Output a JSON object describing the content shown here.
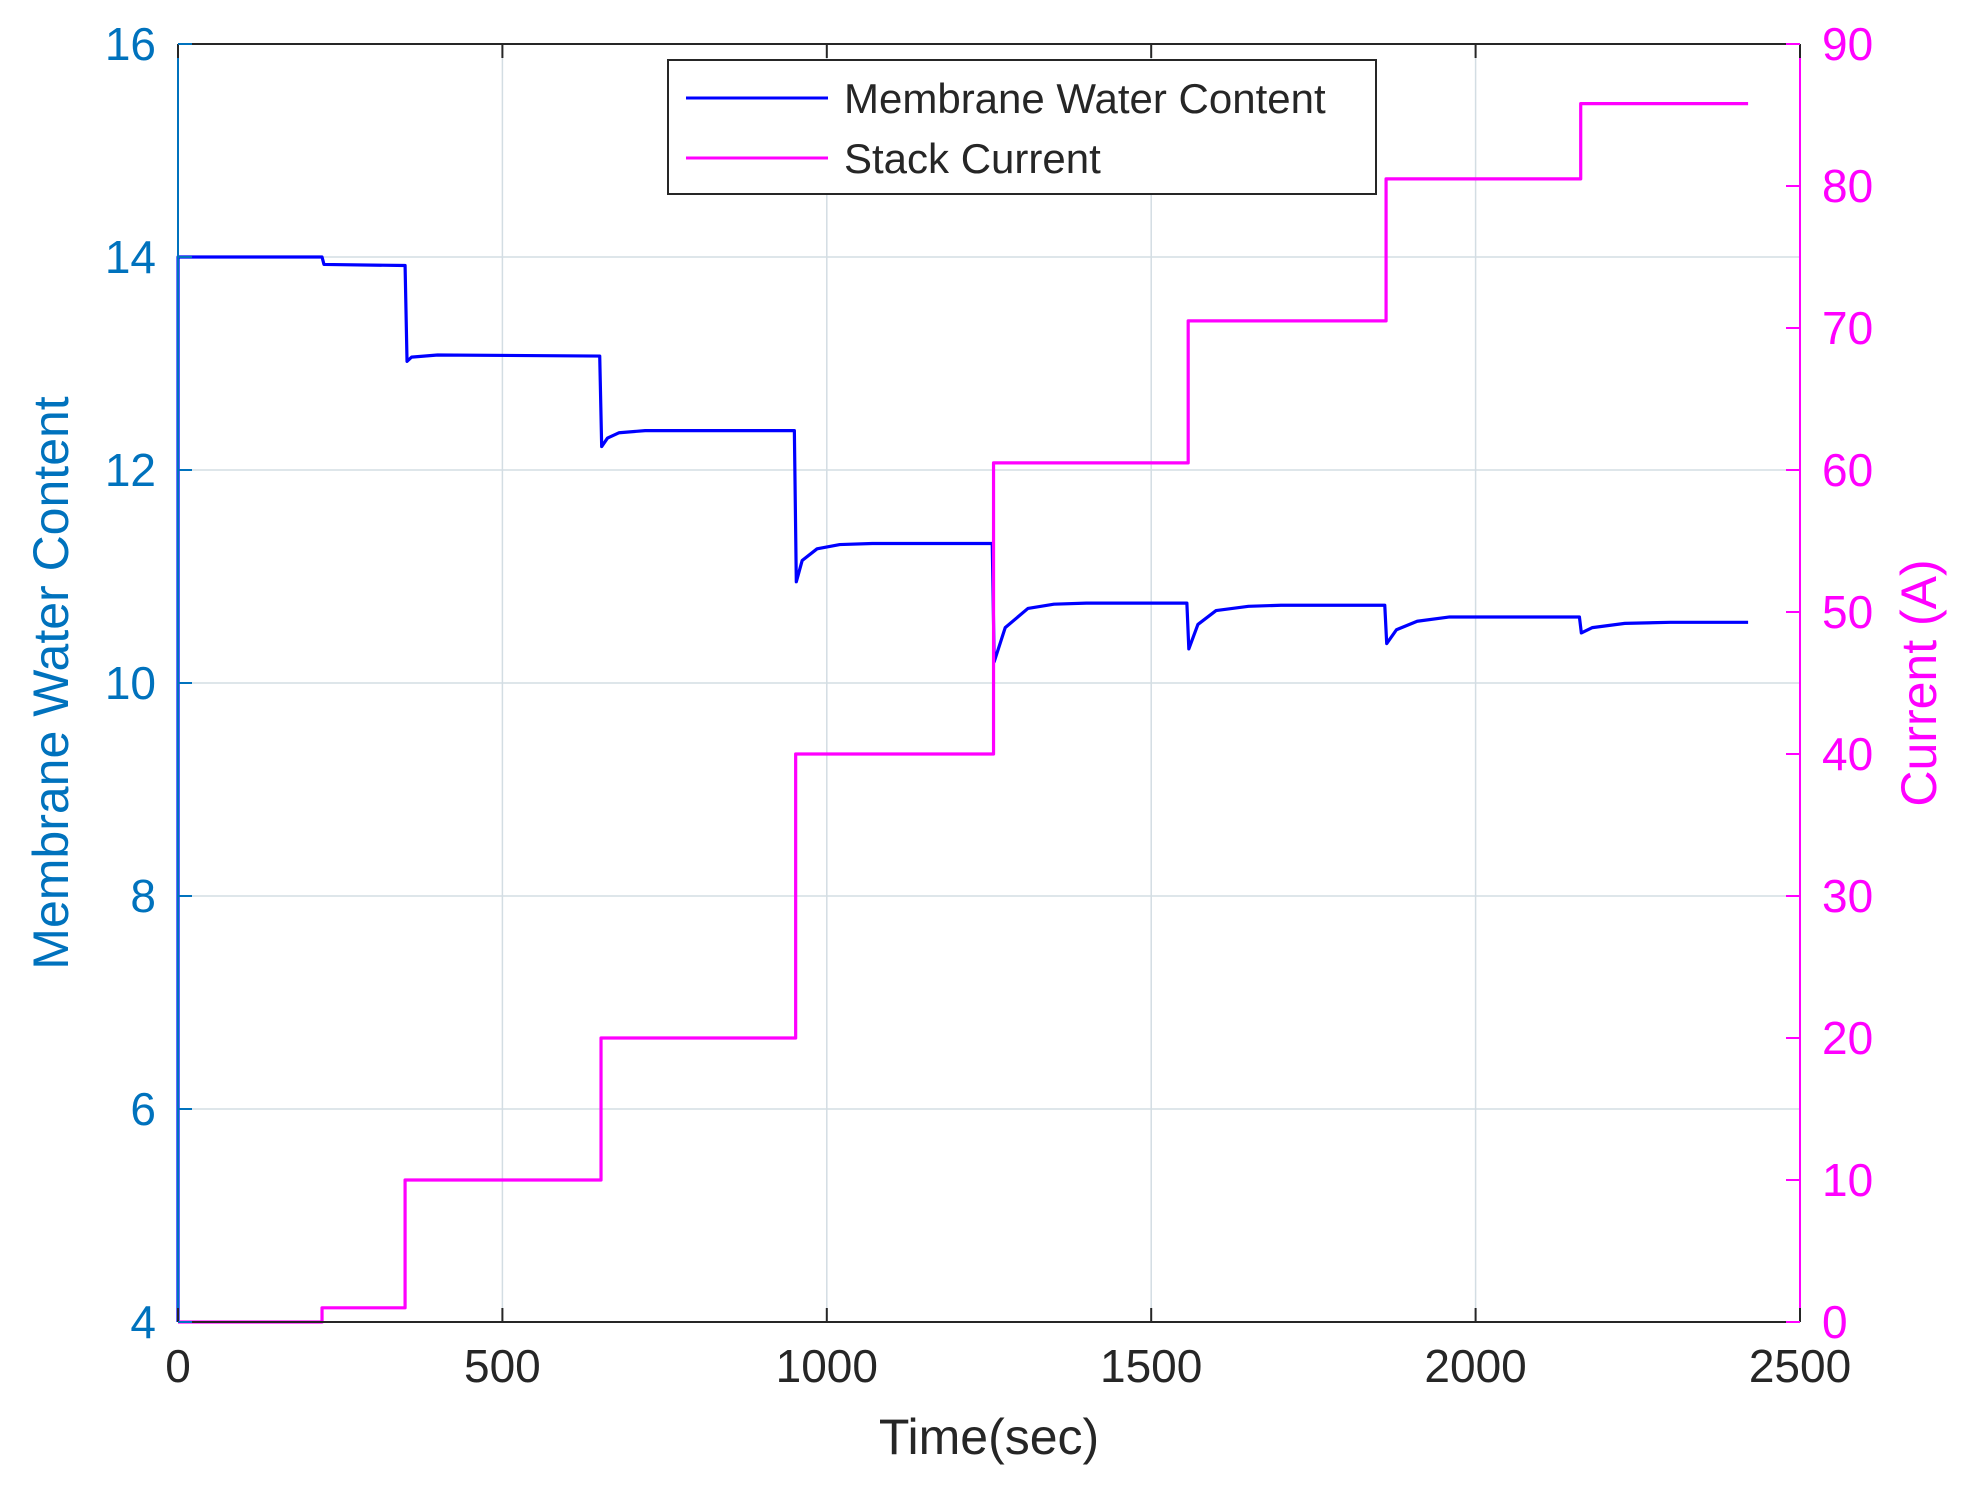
{
  "chart_data": {
    "type": "line",
    "xlabel": "Time(sec)",
    "xlim": [
      0,
      2500
    ],
    "xticks": [
      0,
      500,
      1000,
      1500,
      2000,
      2500
    ],
    "y_left": {
      "label": "Membrane Water Content",
      "lim": [
        4,
        16
      ],
      "ticks": [
        4,
        6,
        8,
        10,
        12,
        14,
        16
      ],
      "color": "#0072BD"
    },
    "y_right": {
      "label": "Current (A)",
      "lim": [
        0,
        90
      ],
      "ticks": [
        0,
        10,
        20,
        30,
        40,
        50,
        60,
        70,
        80,
        90
      ],
      "color": "#FF00FF"
    },
    "grid": true,
    "legend_location": "top-center",
    "series": [
      {
        "name": "Membrane Water Content",
        "axis": "left",
        "color": "#0000FF",
        "x": [
          0,
          0.1,
          222,
          225,
          350,
          353,
          360,
          400,
          650,
          653,
          662,
          680,
          720,
          950,
          953,
          962,
          985,
          1020,
          1070,
          1100,
          1255,
          1258,
          1275,
          1310,
          1350,
          1400,
          1555,
          1558,
          1572,
          1600,
          1650,
          1700,
          1860,
          1863,
          1878,
          1910,
          1960,
          2000,
          2160,
          2163,
          2180,
          2230,
          2300,
          2420
        ],
        "y": [
          4,
          14.0,
          14.0,
          13.93,
          13.92,
          13.02,
          13.06,
          13.08,
          13.07,
          12.22,
          12.3,
          12.35,
          12.37,
          12.37,
          10.95,
          11.15,
          11.26,
          11.3,
          11.31,
          11.31,
          11.31,
          10.2,
          10.52,
          10.7,
          10.74,
          10.75,
          10.75,
          10.32,
          10.55,
          10.68,
          10.72,
          10.73,
          10.73,
          10.37,
          10.5,
          10.58,
          10.62,
          10.62,
          10.62,
          10.47,
          10.52,
          10.56,
          10.57,
          10.57
        ]
      },
      {
        "name": "Stack Current",
        "axis": "right",
        "color": "#FF00FF",
        "x": [
          0,
          222,
          222,
          350,
          350,
          652,
          652,
          952,
          952,
          1257,
          1257,
          1557,
          1557,
          1862,
          1862,
          2162,
          2162,
          2420
        ],
        "y": [
          0,
          0,
          1,
          1,
          10,
          10,
          20,
          20,
          40,
          40,
          60.5,
          60.5,
          70.5,
          70.5,
          80.5,
          80.5,
          85.8,
          85.8
        ]
      }
    ]
  }
}
